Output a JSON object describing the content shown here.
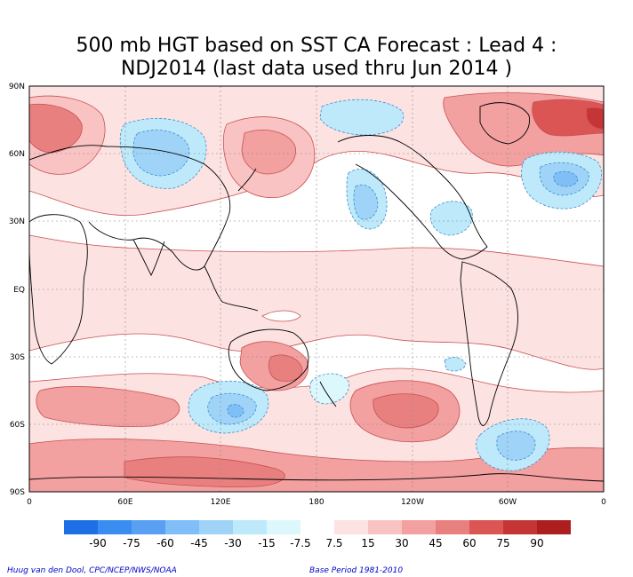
{
  "title": {
    "line1": "500 mb HGT based on SST CA Forecast : Lead 4 :",
    "line2": "NDJ2014 (last data used thru Jun 2014 )"
  },
  "map": {
    "lat_labels": [
      "90N",
      "60N",
      "30N",
      "EQ",
      "30S",
      "60S",
      "90S"
    ],
    "lon_labels": [
      "0",
      "60E",
      "120E",
      "180",
      "120W",
      "60W",
      "0"
    ]
  },
  "colorbar": {
    "labels": [
      "-90",
      "-75",
      "-60",
      "-45",
      "-30",
      "-15",
      "-7.5",
      "7.5",
      "15",
      "30",
      "45",
      "60",
      "75",
      "90"
    ],
    "colors": [
      "#1e6fe6",
      "#3a8cf0",
      "#5aa0f2",
      "#7fbef6",
      "#9fd4f8",
      "#bde9fb",
      "#ddf8fd",
      "#ffffff",
      "#fde2e2",
      "#f9c3c3",
      "#f2a0a0",
      "#e98080",
      "#dc5555",
      "#c53535",
      "#ad1f1f"
    ]
  },
  "credits": {
    "left": "Huug van den Dool, CPC/NCEP/NWS/NOAA",
    "right": "Base Period 1981-2010"
  }
}
